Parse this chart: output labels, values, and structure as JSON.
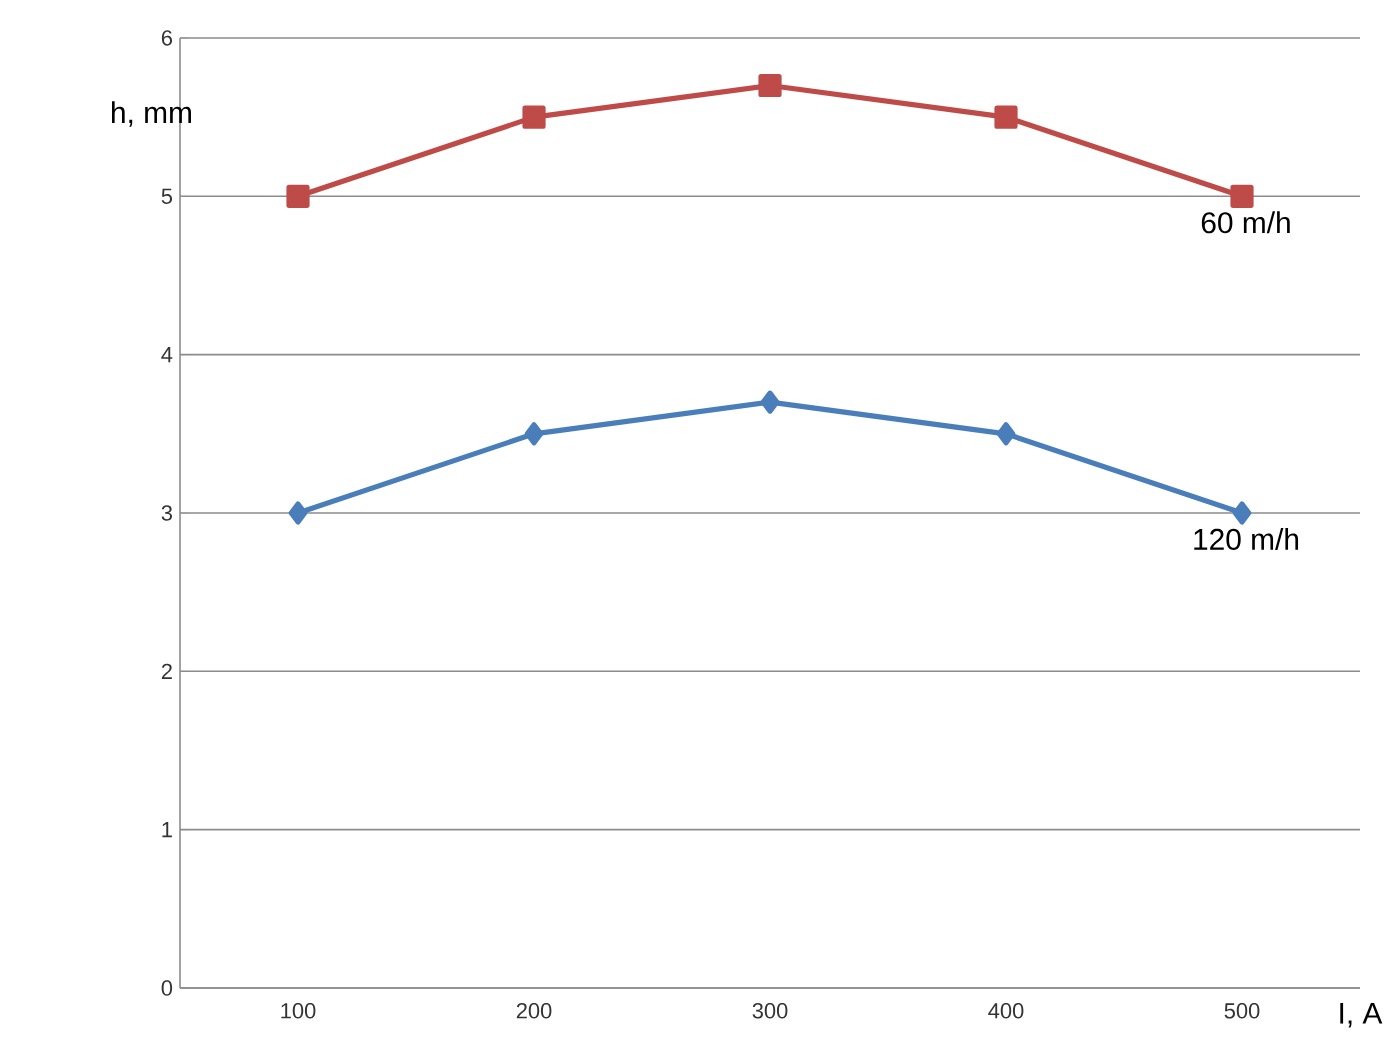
{
  "chart_data": {
    "type": "line",
    "xlabel": "I, A",
    "ylabel": "h, mm",
    "categories": [
      "100",
      "200",
      "300",
      "400",
      "500"
    ],
    "ylim": [
      0,
      6
    ],
    "yticks": [
      0,
      1,
      2,
      3,
      4,
      5,
      6
    ],
    "grid": "y",
    "line_style": "solid",
    "series": [
      {
        "name": "60 m/h",
        "color": "#be4b48",
        "marker": "square",
        "values": [
          5.0,
          5.5,
          5.7,
          5.5,
          5.0
        ]
      },
      {
        "name": "120 m/h",
        "color": "#4a7ebb",
        "marker": "diamond",
        "values": [
          3.0,
          3.5,
          3.7,
          3.5,
          3.0
        ]
      }
    ]
  }
}
